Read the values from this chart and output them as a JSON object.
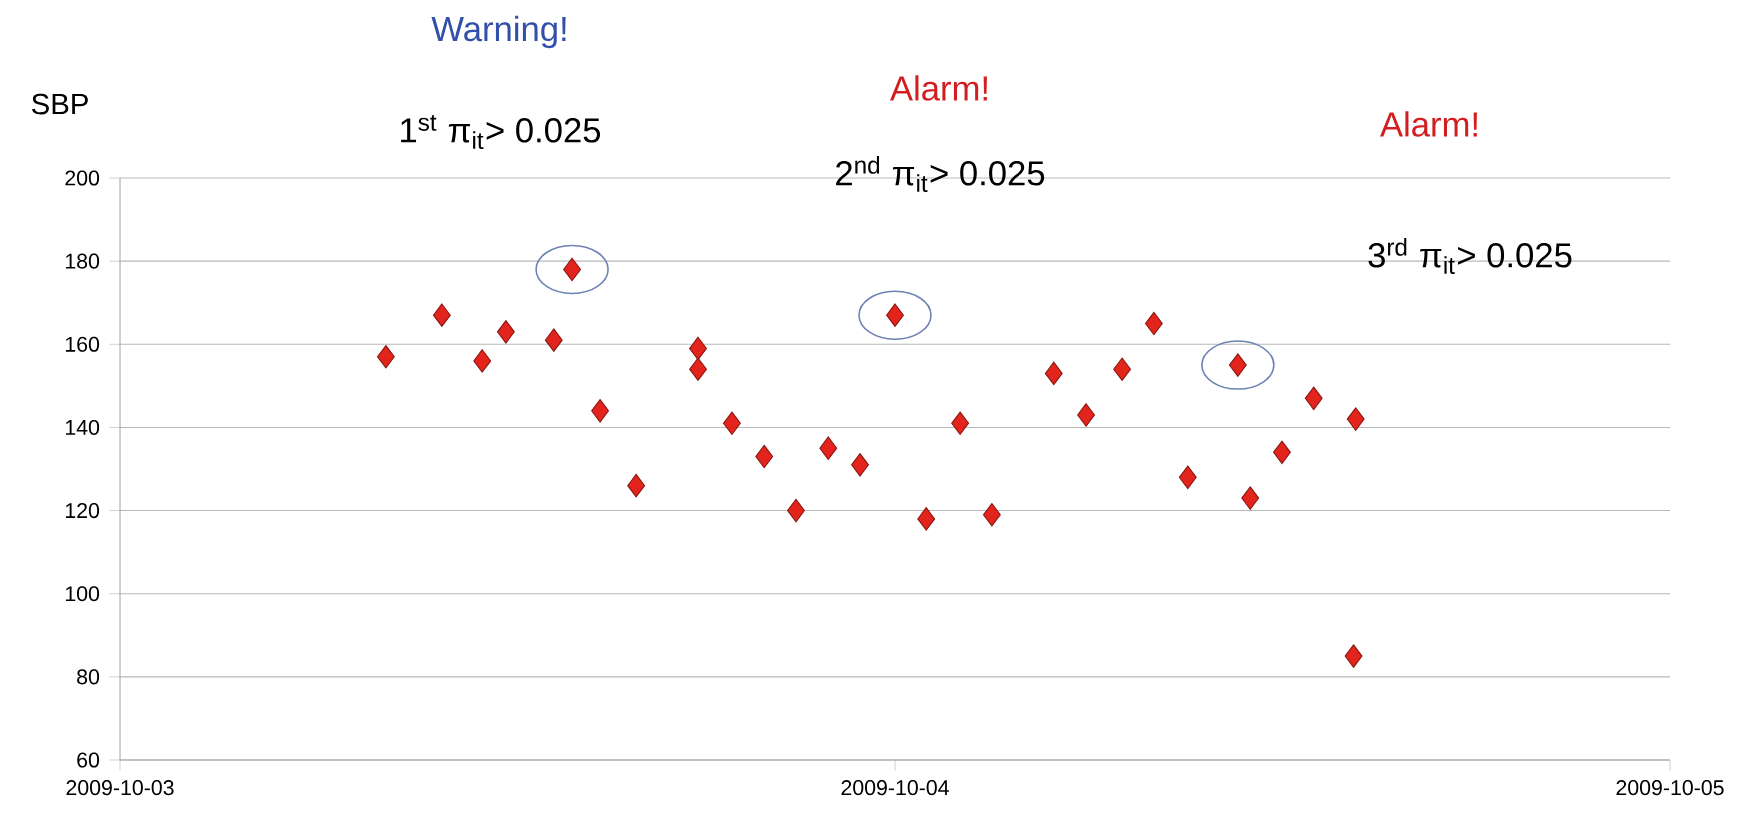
{
  "chart_data": {
    "type": "scatter",
    "ylabel": "SBP",
    "x": [
      "2009-10-03T08:14",
      "2009-10-03T09:58",
      "2009-10-03T11:13",
      "2009-10-03T11:57",
      "2009-10-03T13:26",
      "2009-10-03T14:00",
      "2009-10-03T14:52",
      "2009-10-03T15:59",
      "2009-10-03T17:54",
      "2009-10-03T17:54",
      "2009-10-03T18:57",
      "2009-10-03T19:57",
      "2009-10-03T20:56",
      "2009-10-03T21:56",
      "2009-10-03T22:55",
      "2009-10-04T00:00",
      "2009-10-04T00:58",
      "2009-10-04T02:01",
      "2009-10-04T03:00",
      "2009-10-04T04:55",
      "2009-10-04T05:55",
      "2009-10-04T07:02",
      "2009-10-04T08:01",
      "2009-10-04T09:04",
      "2009-10-04T10:37",
      "2009-10-04T11:00",
      "2009-10-04T11:59",
      "2009-10-04T12:58",
      "2009-10-04T14:16",
      "2009-10-04T14:12"
    ],
    "values": [
      157,
      167,
      156,
      163,
      161,
      178,
      144,
      126,
      159,
      154,
      141,
      133,
      120,
      135,
      131,
      167,
      118,
      141,
      119,
      153,
      143,
      154,
      165,
      128,
      155,
      123,
      134,
      147,
      142,
      85
    ],
    "color": "#e3241c",
    "marker": "diamond",
    "xlim": [
      "2009-10-03",
      "2009-10-05"
    ],
    "xticks": [
      "2009-10-03",
      "2009-10-04",
      "2009-10-05"
    ],
    "ylim": [
      60,
      200
    ],
    "yticks": [
      60,
      80,
      100,
      120,
      140,
      160,
      180,
      200
    ],
    "grid": "y",
    "annotations": [
      "Warning!",
      "1$^{st}$ π$_{it}$> 0.025",
      "Alarm!",
      "2$^{nd}$ π$_{it}$> 0.025",
      "Alarm!",
      "3$^{rd}$ π$_{it}$> 0.025"
    ]
  }
}
